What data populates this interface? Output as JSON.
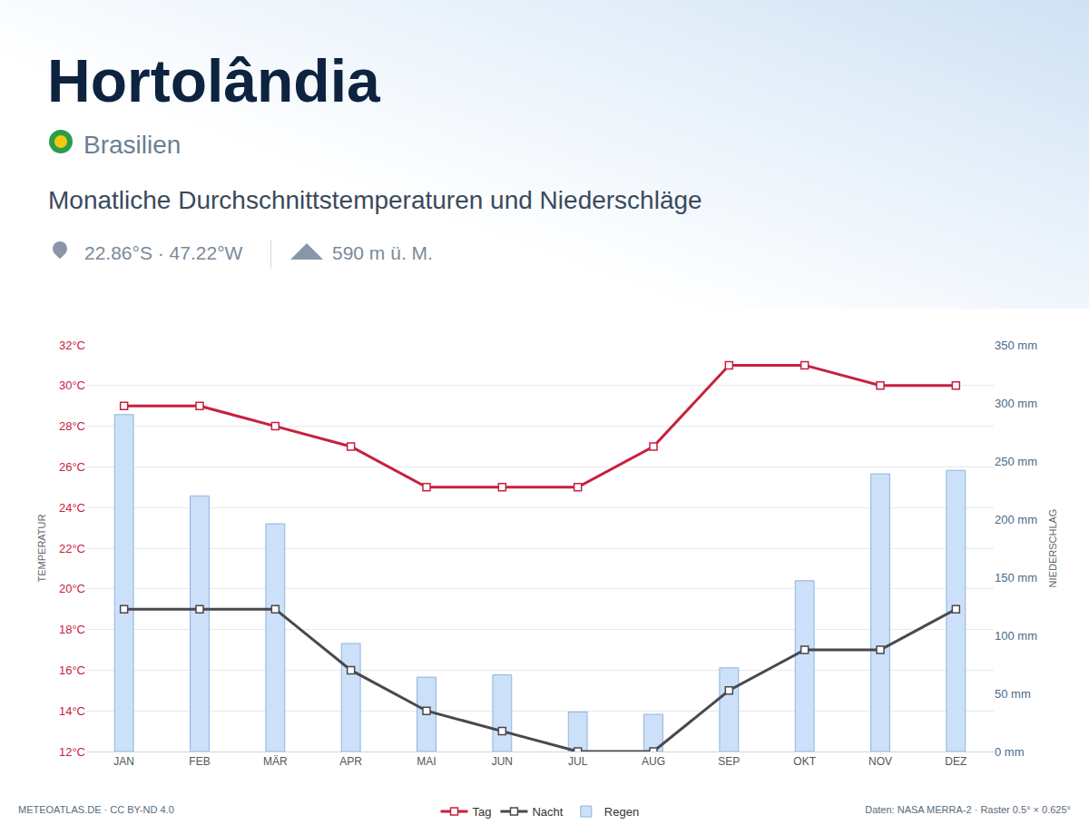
{
  "chart_data": {
    "type": "line",
    "title": "Hortolândia",
    "subtitle": "Monatliche Durchschnittstemperaturen und Niederschläge",
    "annotations": [
      "Brasilien",
      "22.86°S · 47.22°W",
      "590 m ü. M.",
      "METEOATLAS.DE · CC BY-ND 4.0",
      "Daten: NASA MERRA-2 · Raster 0.5° × 0.625°"
    ],
    "y_label": "TEMPERATUR",
    "y2_label": "NIEDERSCHLAG",
    "categories": [
      "JAN",
      "FEB",
      "MÄR",
      "APR",
      "MAI",
      "JUN",
      "JUL",
      "AUG",
      "SEP",
      "OKT",
      "NOV",
      "DEZ"
    ],
    "series": [
      {
        "name": "Tag",
        "type": "line",
        "color": "#c8203f",
        "marker": "square",
        "values": [
          29,
          29,
          28,
          27,
          25,
          25,
          25,
          27,
          31,
          31,
          30,
          30
        ]
      },
      {
        "name": "Nacht",
        "type": "line",
        "color": "#48484e",
        "marker": "square",
        "values": [
          19,
          19,
          19,
          16,
          14,
          13,
          12,
          12,
          15,
          17,
          17,
          19
        ]
      },
      {
        "name": "Regen",
        "type": "bar",
        "axis": "y2",
        "color": "#cce0fa",
        "values": [
          290,
          220,
          196,
          93,
          64,
          66,
          34,
          32,
          72,
          147,
          239,
          242
        ]
      }
    ],
    "ylim": [
      12,
      32
    ],
    "yticks": [
      {
        "value": 12,
        "label": "12°C"
      },
      {
        "value": 14,
        "label": "14°C"
      },
      {
        "value": 16,
        "label": "16°C"
      },
      {
        "value": 18,
        "label": "18°C"
      },
      {
        "value": 20,
        "label": "20°C"
      },
      {
        "value": 22,
        "label": "22°C"
      },
      {
        "value": 24,
        "label": "24°C"
      },
      {
        "value": 26,
        "label": "26°C"
      },
      {
        "value": 28,
        "label": "28°C"
      },
      {
        "value": 30,
        "label": "30°C"
      },
      {
        "value": 32,
        "label": "32°C"
      }
    ],
    "y2lim": [
      0,
      350
    ],
    "y2ticks": [
      {
        "value": 0,
        "label": "0 mm"
      },
      {
        "value": 50,
        "label": "50 mm"
      },
      {
        "value": 100,
        "label": "100 mm"
      },
      {
        "value": 150,
        "label": "150 mm"
      },
      {
        "value": 200,
        "label": "200 mm"
      },
      {
        "value": 250,
        "label": "250 mm"
      },
      {
        "value": 300,
        "label": "300 mm"
      },
      {
        "value": 350,
        "label": "350 mm"
      }
    ],
    "grid": true,
    "legend": "bottom"
  }
}
